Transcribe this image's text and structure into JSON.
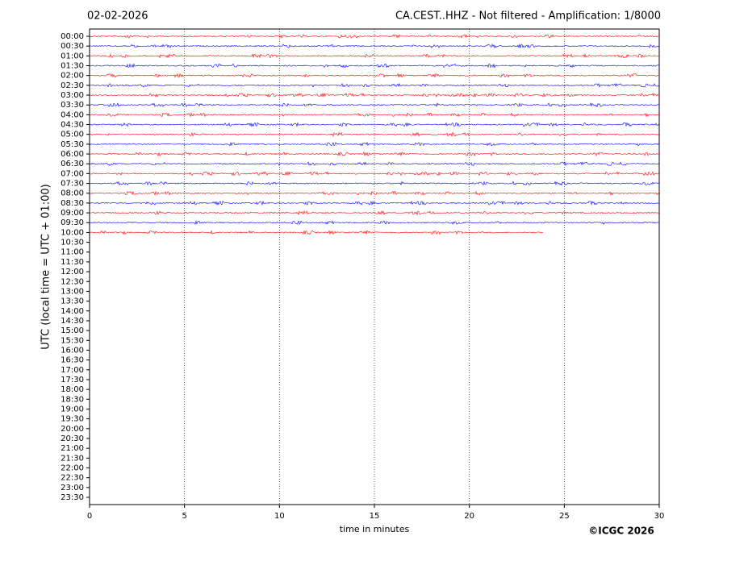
{
  "chart_data": {
    "type": "helicorder",
    "title_left": "02-02-2026",
    "title_right": "CA.CEST..HHZ - Not filtered - Amplification: 1/8000",
    "y_label": "UTC (local time = UTC + 01:00)",
    "x_label": "time in minutes",
    "credit": "©ICGC 2026",
    "categories": [
      "00:00",
      "00:30",
      "01:00",
      "01:30",
      "02:00",
      "02:30",
      "03:00",
      "03:30",
      "04:00",
      "04:30",
      "05:00",
      "05:30",
      "06:00",
      "06:30",
      "07:00",
      "07:30",
      "08:00",
      "08:30",
      "09:00",
      "09:30",
      "10:00",
      "10:30",
      "11:00",
      "11:30",
      "12:00",
      "12:30",
      "13:00",
      "13:30",
      "14:00",
      "14:30",
      "15:00",
      "15:30",
      "16:00",
      "16:30",
      "17:00",
      "17:30",
      "18:00",
      "18:30",
      "19:00",
      "19:30",
      "20:00",
      "20:30",
      "21:00",
      "21:30",
      "22:00",
      "22:30",
      "23:00",
      "23:30"
    ],
    "trace_colors": [
      "#ff0000",
      "#0000ff"
    ],
    "trace_end": [
      30,
      30,
      30,
      30,
      30,
      30,
      30,
      30,
      30,
      30,
      30,
      30,
      30,
      30,
      30,
      30,
      30,
      30,
      30,
      30,
      23.9
    ],
    "xlim": [
      0,
      30
    ],
    "xticks": [
      0,
      5,
      10,
      15,
      20,
      25,
      30
    ],
    "grid": true
  }
}
